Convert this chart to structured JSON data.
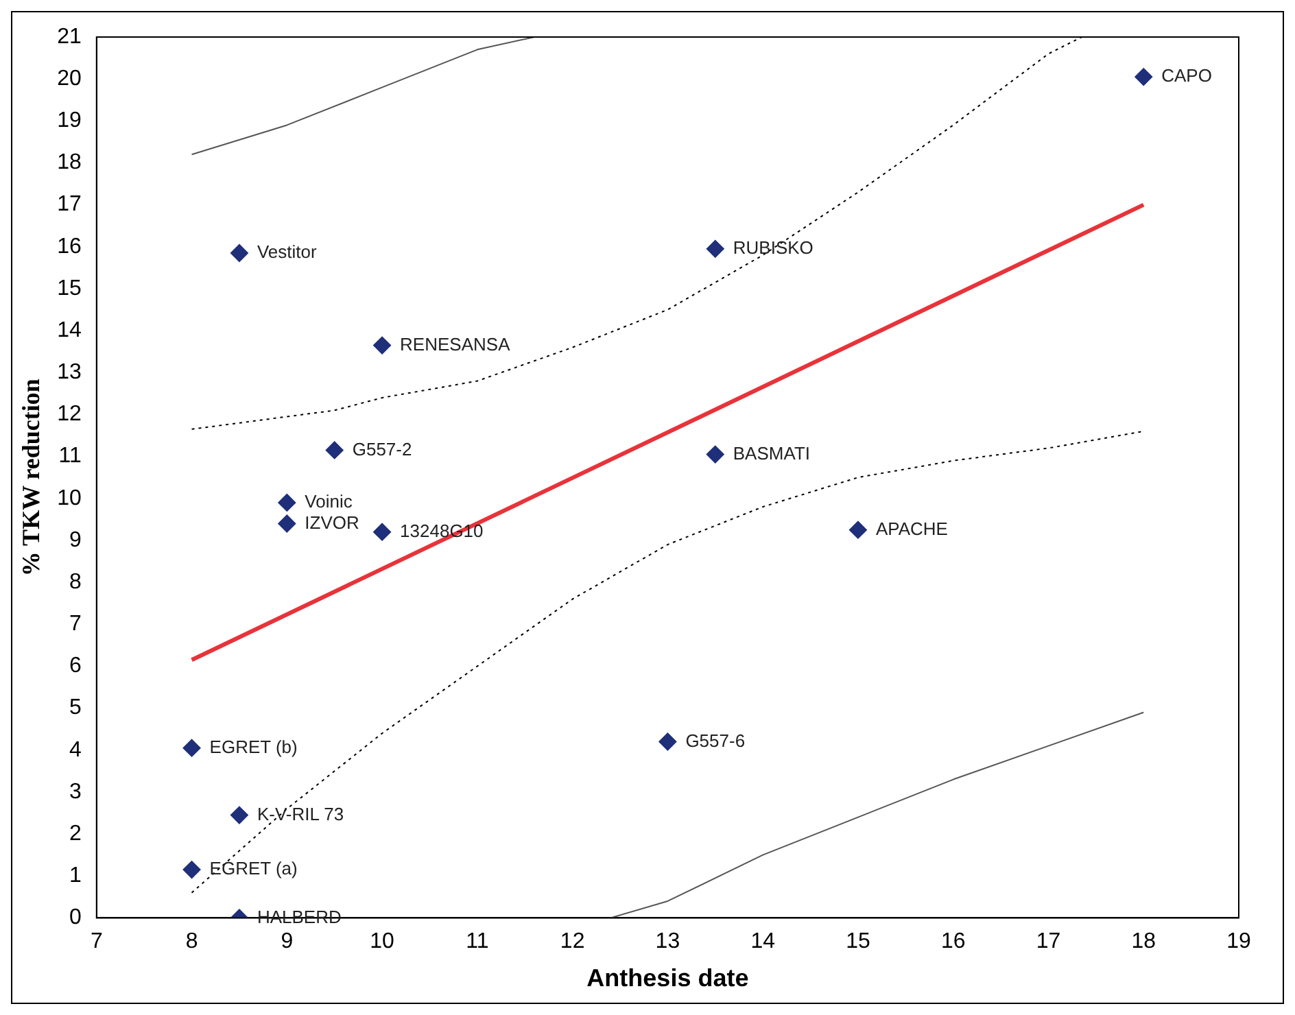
{
  "chart_data": {
    "type": "scatter",
    "xlabel": "Anthesis date",
    "ylabel": "% TKW reduction",
    "xlim": [
      7,
      19
    ],
    "xticks": [
      7,
      8,
      9,
      10,
      11,
      12,
      13,
      14,
      15,
      16,
      17,
      18,
      19
    ],
    "ylim": [
      0,
      21
    ],
    "yticks": [
      0,
      1,
      2,
      3,
      4,
      5,
      6,
      7,
      8,
      9,
      10,
      11,
      12,
      13,
      14,
      15,
      16,
      17,
      18,
      19,
      20,
      21
    ],
    "grid": false,
    "series": [
      {
        "marker": "diamond",
        "color": "#1f2f7a",
        "x": [
          8.5,
          13.5,
          18,
          10,
          9.5,
          13.5,
          9,
          9,
          10,
          15,
          8,
          13,
          8.5,
          8,
          8.5
        ],
        "values": [
          15.85,
          15.95,
          20.05,
          13.65,
          11.15,
          11.05,
          9.9,
          9.4,
          9.2,
          9.25,
          4.05,
          4.2,
          2.45,
          1.15,
          0
        ]
      },
      {
        "type": "line",
        "color": "#e8333a",
        "line_style": "solid",
        "x": [
          8,
          18
        ],
        "values": [
          6.15,
          17.0
        ]
      },
      {
        "type": "line",
        "color": "#000000",
        "line_style": "dotted",
        "x": [
          8,
          9,
          9.5,
          10,
          11,
          12,
          13,
          14,
          15,
          16,
          17,
          17.35
        ],
        "values": [
          11.65,
          11.95,
          12.1,
          12.4,
          12.8,
          13.6,
          14.5,
          15.8,
          17.3,
          18.9,
          20.6,
          21
        ]
      },
      {
        "type": "line",
        "color": "#000000",
        "line_style": "dotted",
        "x": [
          8,
          9,
          10,
          11,
          12,
          13,
          14,
          15,
          16,
          17,
          18
        ],
        "values": [
          0.6,
          2.6,
          4.4,
          6.0,
          7.6,
          8.9,
          9.8,
          10.5,
          10.9,
          11.2,
          11.6
        ]
      },
      {
        "type": "line",
        "color": "#555555",
        "line_style": "solid",
        "x": [
          8,
          9,
          10,
          11,
          11.6
        ],
        "values": [
          18.2,
          18.9,
          19.8,
          20.7,
          21
        ]
      },
      {
        "type": "line",
        "color": "#555555",
        "line_style": "solid",
        "x": [
          12.4,
          13,
          14,
          15,
          16,
          17,
          18
        ],
        "values": [
          0,
          0.4,
          1.5,
          2.4,
          3.3,
          4.1,
          4.9
        ]
      }
    ],
    "annotations": [
      {
        "text": "Vestitor",
        "x": 8.5,
        "y": 15.85
      },
      {
        "text": "RUBISKO",
        "x": 13.5,
        "y": 15.95
      },
      {
        "text": "CAPO",
        "x": 18,
        "y": 20.05
      },
      {
        "text": "RENESANSA",
        "x": 10,
        "y": 13.65
      },
      {
        "text": "G557-2",
        "x": 9.5,
        "y": 11.15
      },
      {
        "text": "BASMATI",
        "x": 13.5,
        "y": 11.05
      },
      {
        "text": "Voinic",
        "x": 9,
        "y": 9.9
      },
      {
        "text": "IZVOR",
        "x": 9,
        "y": 9.4
      },
      {
        "text": "13248G10",
        "x": 10,
        "y": 9.2
      },
      {
        "text": "APACHE",
        "x": 15,
        "y": 9.25
      },
      {
        "text": "EGRET (b)",
        "x": 8,
        "y": 4.05
      },
      {
        "text": "G557-6",
        "x": 13,
        "y": 4.2
      },
      {
        "text": "K-V-RIL 73",
        "x": 8.5,
        "y": 2.45
      },
      {
        "text": "EGRET (a)",
        "x": 8,
        "y": 1.15
      },
      {
        "text": "HALBERD",
        "x": 8.5,
        "y": 0
      }
    ]
  }
}
